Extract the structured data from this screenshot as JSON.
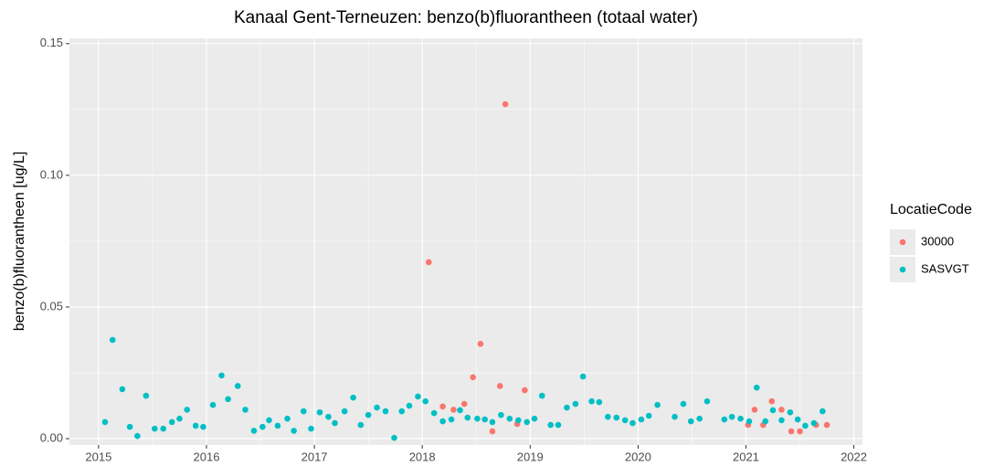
{
  "chart_data": {
    "type": "scatter",
    "title": "Kanaal Gent-Terneuzen: benzo(b)fluorantheen (totaal water)",
    "y_label": "benzo(b)fluorantheen [ug/L]",
    "legend_title": "LocatieCode",
    "xlim": [
      2014.73,
      2022.08
    ],
    "xticks": [
      2015,
      2016,
      2017,
      2018,
      2019,
      2020,
      2021,
      2022
    ],
    "ylim": [
      -0.0024,
      0.152
    ],
    "yticks": [
      {
        "value": 0,
        "label": "0.00"
      },
      {
        "value": 0.05,
        "label": "0.05"
      },
      {
        "value": 0.1,
        "label": "0.10"
      },
      {
        "value": 0.15,
        "label": "0.15"
      }
    ],
    "grid": true,
    "legend": "right",
    "series": [
      {
        "name": "30000",
        "color": "#F8766D",
        "x": [
          2018.06,
          2018.19,
          2018.29,
          2018.39,
          2018.47,
          2018.54,
          2018.65,
          2018.72,
          2018.77,
          2018.88,
          2018.95,
          2021.02,
          2021.08,
          2021.16,
          2021.24,
          2021.33,
          2021.42,
          2021.5,
          2021.65,
          2021.75
        ],
        "values": [
          0.067,
          0.0122,
          0.011,
          0.0132,
          0.0233,
          0.036,
          0.0028,
          0.02,
          0.127,
          0.0056,
          0.0184,
          0.0052,
          0.011,
          0.0052,
          0.0142,
          0.011,
          0.0028,
          0.0028,
          0.0052,
          0.0052
        ]
      },
      {
        "name": "SASVGT",
        "color": "#00BFC4",
        "x": [
          2015.06,
          2015.13,
          2015.22,
          2015.29,
          2015.36,
          2015.44,
          2015.52,
          2015.6,
          2015.68,
          2015.75,
          2015.82,
          2015.9,
          2015.97,
          2016.06,
          2016.14,
          2016.2,
          2016.29,
          2016.36,
          2016.44,
          2016.52,
          2016.58,
          2016.66,
          2016.75,
          2016.81,
          2016.9,
          2016.97,
          2017.05,
          2017.13,
          2017.19,
          2017.28,
          2017.36,
          2017.43,
          2017.5,
          2017.58,
          2017.66,
          2017.74,
          2017.81,
          2017.88,
          2017.96,
          2018.03,
          2018.11,
          2018.19,
          2018.27,
          2018.35,
          2018.42,
          2018.51,
          2018.58,
          2018.65,
          2018.73,
          2018.81,
          2018.89,
          2018.97,
          2019.04,
          2019.11,
          2019.19,
          2019.26,
          2019.34,
          2019.42,
          2019.49,
          2019.57,
          2019.64,
          2019.72,
          2019.8,
          2019.88,
          2019.95,
          2020.03,
          2020.1,
          2020.18,
          2020.34,
          2020.42,
          2020.49,
          2020.57,
          2020.64,
          2020.8,
          2020.87,
          2020.95,
          2021.03,
          2021.1,
          2021.18,
          2021.25,
          2021.33,
          2021.41,
          2021.48,
          2021.55,
          2021.63,
          2021.71
        ],
        "values": [
          0.0063,
          0.0375,
          0.0188,
          0.0045,
          0.001,
          0.0163,
          0.0038,
          0.0038,
          0.0063,
          0.0076,
          0.011,
          0.0049,
          0.0045,
          0.0128,
          0.024,
          0.015,
          0.02,
          0.011,
          0.003,
          0.0045,
          0.007,
          0.0049,
          0.0076,
          0.003,
          0.0104,
          0.0038,
          0.01,
          0.0083,
          0.0059,
          0.0104,
          0.0156,
          0.0052,
          0.009,
          0.0118,
          0.0104,
          0.0003,
          0.0104,
          0.0125,
          0.016,
          0.0142,
          0.0097,
          0.0066,
          0.0073,
          0.0108,
          0.008,
          0.0076,
          0.0073,
          0.0063,
          0.009,
          0.0076,
          0.007,
          0.0063,
          0.0076,
          0.0163,
          0.0052,
          0.0052,
          0.0118,
          0.0132,
          0.0236,
          0.0142,
          0.0139,
          0.0083,
          0.008,
          0.007,
          0.0059,
          0.0073,
          0.0087,
          0.0128,
          0.0083,
          0.0132,
          0.0066,
          0.0076,
          0.0142,
          0.0073,
          0.0083,
          0.0076,
          0.0066,
          0.0194,
          0.0066,
          0.0108,
          0.007,
          0.01,
          0.0073,
          0.0049,
          0.0059,
          0.0104
        ]
      }
    ]
  }
}
